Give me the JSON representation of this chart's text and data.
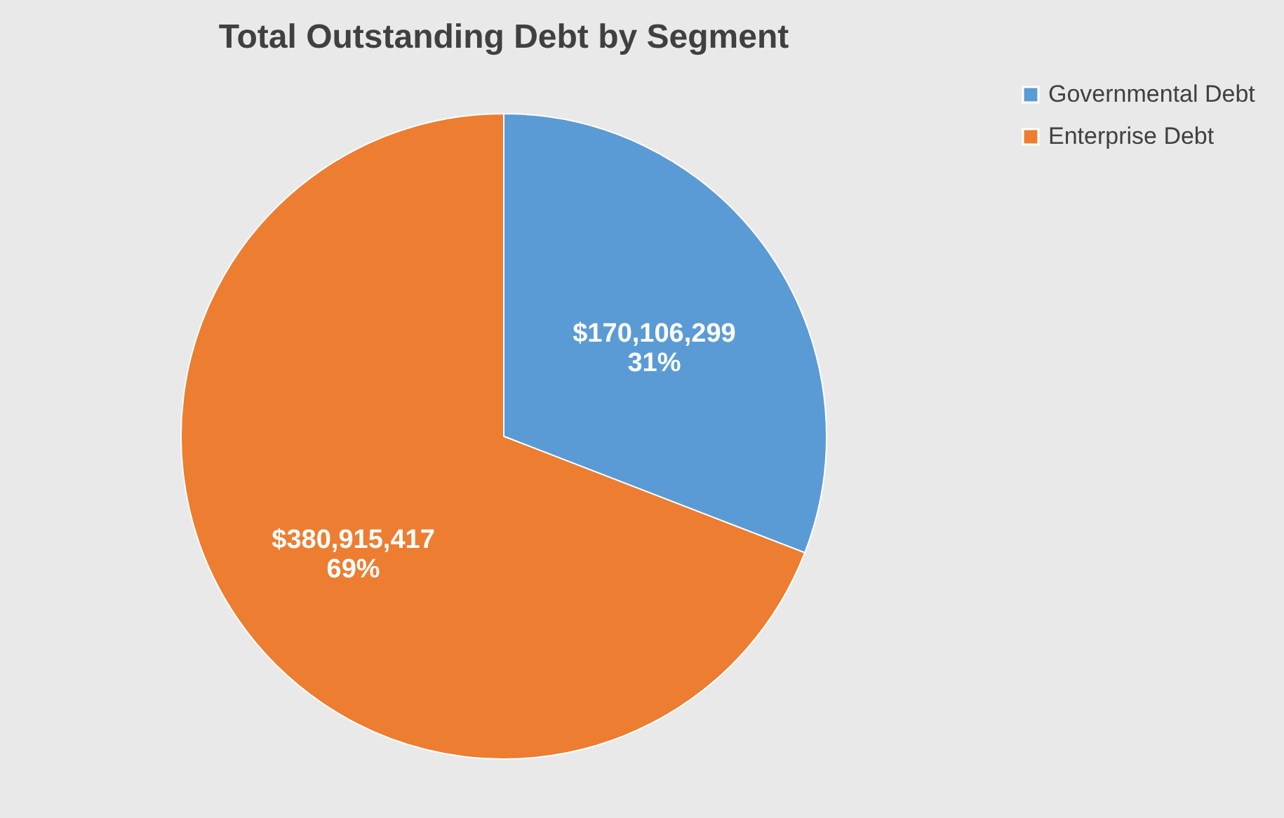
{
  "chart_data": {
    "type": "pie",
    "title": "Total Outstanding Debt by Segment",
    "categories": [
      "Governmental Debt",
      "Enterprise Debt"
    ],
    "values": [
      170106299,
      380915417
    ],
    "colors": [
      "#5b9bd5",
      "#ed7d31"
    ],
    "value_labels": [
      "$170,106,299\n31%",
      "$380,915,417\n69%"
    ],
    "legend": "right"
  }
}
